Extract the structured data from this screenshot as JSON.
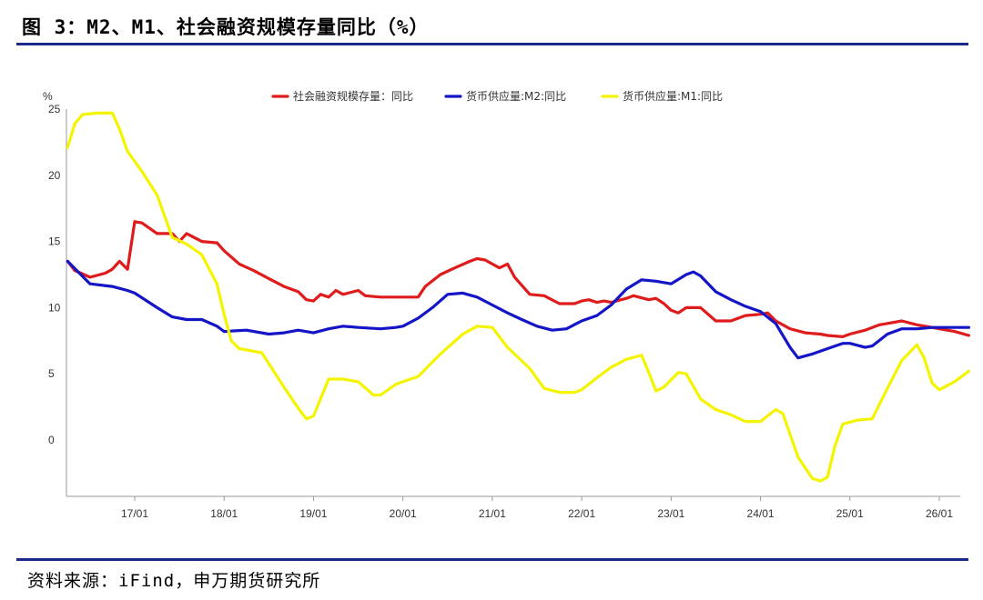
{
  "figure": {
    "title": "图 3：M2、M1、社会融资规模存量同比（%）",
    "source": "资料来源：iFind，申万期货研究所",
    "rule_color": "#1a2a8c"
  },
  "chart_data": {
    "type": "line",
    "y_unit": "%",
    "ylim": [
      -4,
      25
    ],
    "y_ticks": [
      "25",
      "20",
      "15",
      "10",
      "5",
      "0"
    ],
    "x_ticks": [
      "17/01",
      "18/01",
      "19/01",
      "20/01",
      "21/01",
      "22/01",
      "23/01",
      "24/01",
      "25/01",
      "26/01"
    ],
    "x_range": [
      2016.25,
      2026.33
    ],
    "grid": false,
    "legend_position": "top-center",
    "series": [
      {
        "name": "社会融资规模存量：同比",
        "color": "#e01b1b",
        "points": [
          [
            2016.25,
            13.5
          ],
          [
            2016.33,
            12.8
          ],
          [
            2016.5,
            12.3
          ],
          [
            2016.67,
            12.6
          ],
          [
            2016.75,
            12.9
          ],
          [
            2016.83,
            13.5
          ],
          [
            2016.92,
            12.9
          ],
          [
            2017.0,
            16.5
          ],
          [
            2017.08,
            16.4
          ],
          [
            2017.25,
            15.6
          ],
          [
            2017.42,
            15.6
          ],
          [
            2017.5,
            15.0
          ],
          [
            2017.58,
            15.6
          ],
          [
            2017.75,
            15.0
          ],
          [
            2017.92,
            14.9
          ],
          [
            2018.0,
            14.3
          ],
          [
            2018.17,
            13.3
          ],
          [
            2018.33,
            12.8
          ],
          [
            2018.5,
            12.2
          ],
          [
            2018.67,
            11.6
          ],
          [
            2018.83,
            11.2
          ],
          [
            2018.92,
            10.6
          ],
          [
            2019.0,
            10.5
          ],
          [
            2019.08,
            11.0
          ],
          [
            2019.17,
            10.8
          ],
          [
            2019.25,
            11.3
          ],
          [
            2019.33,
            11.0
          ],
          [
            2019.5,
            11.3
          ],
          [
            2019.58,
            10.9
          ],
          [
            2019.75,
            10.8
          ],
          [
            2020.0,
            10.8
          ],
          [
            2020.17,
            10.8
          ],
          [
            2020.25,
            11.6
          ],
          [
            2020.42,
            12.5
          ],
          [
            2020.58,
            13.0
          ],
          [
            2020.75,
            13.5
          ],
          [
            2020.83,
            13.7
          ],
          [
            2020.92,
            13.6
          ],
          [
            2021.0,
            13.3
          ],
          [
            2021.08,
            13.0
          ],
          [
            2021.17,
            13.3
          ],
          [
            2021.25,
            12.3
          ],
          [
            2021.42,
            11.0
          ],
          [
            2021.58,
            10.9
          ],
          [
            2021.75,
            10.3
          ],
          [
            2021.92,
            10.3
          ],
          [
            2022.0,
            10.5
          ],
          [
            2022.08,
            10.6
          ],
          [
            2022.17,
            10.4
          ],
          [
            2022.25,
            10.5
          ],
          [
            2022.33,
            10.4
          ],
          [
            2022.5,
            10.7
          ],
          [
            2022.58,
            10.9
          ],
          [
            2022.75,
            10.6
          ],
          [
            2022.83,
            10.7
          ],
          [
            2022.92,
            10.3
          ],
          [
            2023.0,
            9.8
          ],
          [
            2023.08,
            9.6
          ],
          [
            2023.17,
            10.0
          ],
          [
            2023.33,
            10.0
          ],
          [
            2023.5,
            9.0
          ],
          [
            2023.67,
            9.0
          ],
          [
            2023.83,
            9.4
          ],
          [
            2024.0,
            9.5
          ],
          [
            2024.08,
            9.6
          ],
          [
            2024.17,
            9.0
          ],
          [
            2024.33,
            8.4
          ],
          [
            2024.5,
            8.1
          ],
          [
            2024.67,
            8.0
          ],
          [
            2024.75,
            7.9
          ],
          [
            2024.92,
            7.8
          ],
          [
            2025.0,
            8.0
          ],
          [
            2025.17,
            8.3
          ],
          [
            2025.33,
            8.7
          ],
          [
            2025.5,
            8.9
          ],
          [
            2025.58,
            9.0
          ],
          [
            2025.75,
            8.7
          ],
          [
            2025.92,
            8.5
          ],
          [
            2026.0,
            8.4
          ],
          [
            2026.17,
            8.2
          ],
          [
            2026.33,
            7.9
          ]
        ]
      },
      {
        "name": "货币供应量:M2:同比",
        "color": "#1515c8",
        "points": [
          [
            2016.25,
            13.5
          ],
          [
            2016.5,
            11.8
          ],
          [
            2016.75,
            11.6
          ],
          [
            2016.92,
            11.3
          ],
          [
            2017.0,
            11.1
          ],
          [
            2017.25,
            10.0
          ],
          [
            2017.42,
            9.3
          ],
          [
            2017.58,
            9.1
          ],
          [
            2017.75,
            9.1
          ],
          [
            2017.92,
            8.6
          ],
          [
            2018.0,
            8.2
          ],
          [
            2018.25,
            8.3
          ],
          [
            2018.5,
            8.0
          ],
          [
            2018.67,
            8.1
          ],
          [
            2018.83,
            8.3
          ],
          [
            2019.0,
            8.1
          ],
          [
            2019.17,
            8.4
          ],
          [
            2019.33,
            8.6
          ],
          [
            2019.5,
            8.5
          ],
          [
            2019.75,
            8.4
          ],
          [
            2019.92,
            8.5
          ],
          [
            2020.0,
            8.6
          ],
          [
            2020.17,
            9.2
          ],
          [
            2020.33,
            10.0
          ],
          [
            2020.5,
            11.0
          ],
          [
            2020.67,
            11.1
          ],
          [
            2020.83,
            10.8
          ],
          [
            2021.0,
            10.2
          ],
          [
            2021.17,
            9.6
          ],
          [
            2021.33,
            9.1
          ],
          [
            2021.5,
            8.6
          ],
          [
            2021.67,
            8.3
          ],
          [
            2021.83,
            8.4
          ],
          [
            2022.0,
            9.0
          ],
          [
            2022.17,
            9.4
          ],
          [
            2022.33,
            10.2
          ],
          [
            2022.5,
            11.4
          ],
          [
            2022.67,
            12.1
          ],
          [
            2022.83,
            12.0
          ],
          [
            2023.0,
            11.8
          ],
          [
            2023.17,
            12.5
          ],
          [
            2023.25,
            12.7
          ],
          [
            2023.33,
            12.4
          ],
          [
            2023.5,
            11.2
          ],
          [
            2023.67,
            10.6
          ],
          [
            2023.83,
            10.1
          ],
          [
            2024.0,
            9.7
          ],
          [
            2024.17,
            8.8
          ],
          [
            2024.33,
            7.0
          ],
          [
            2024.42,
            6.2
          ],
          [
            2024.58,
            6.5
          ],
          [
            2024.75,
            6.9
          ],
          [
            2024.92,
            7.3
          ],
          [
            2025.0,
            7.3
          ],
          [
            2025.17,
            7.0
          ],
          [
            2025.25,
            7.1
          ],
          [
            2025.42,
            8.0
          ],
          [
            2025.58,
            8.4
          ],
          [
            2025.75,
            8.4
          ],
          [
            2025.92,
            8.5
          ],
          [
            2026.0,
            8.5
          ],
          [
            2026.17,
            8.5
          ],
          [
            2026.33,
            8.5
          ]
        ]
      },
      {
        "name": "货币供应量:M1:同比",
        "color": "#f4f400",
        "points": [
          [
            2016.25,
            22.1
          ],
          [
            2016.33,
            23.9
          ],
          [
            2016.42,
            24.6
          ],
          [
            2016.58,
            24.7
          ],
          [
            2016.75,
            24.7
          ],
          [
            2016.83,
            23.5
          ],
          [
            2016.92,
            21.8
          ],
          [
            2017.08,
            20.3
          ],
          [
            2017.25,
            18.5
          ],
          [
            2017.42,
            15.3
          ],
          [
            2017.58,
            14.8
          ],
          [
            2017.75,
            14.0
          ],
          [
            2017.92,
            11.8
          ],
          [
            2018.0,
            9.5
          ],
          [
            2018.08,
            7.5
          ],
          [
            2018.17,
            6.9
          ],
          [
            2018.42,
            6.6
          ],
          [
            2018.67,
            4.0
          ],
          [
            2018.83,
            2.4
          ],
          [
            2018.92,
            1.6
          ],
          [
            2019.0,
            1.8
          ],
          [
            2019.17,
            4.6
          ],
          [
            2019.33,
            4.6
          ],
          [
            2019.5,
            4.4
          ],
          [
            2019.67,
            3.4
          ],
          [
            2019.75,
            3.4
          ],
          [
            2019.92,
            4.2
          ],
          [
            2020.0,
            4.4
          ],
          [
            2020.17,
            4.8
          ],
          [
            2020.42,
            6.5
          ],
          [
            2020.67,
            8.0
          ],
          [
            2020.83,
            8.6
          ],
          [
            2021.0,
            8.5
          ],
          [
            2021.17,
            7.0
          ],
          [
            2021.42,
            5.4
          ],
          [
            2021.58,
            3.9
          ],
          [
            2021.75,
            3.6
          ],
          [
            2021.92,
            3.6
          ],
          [
            2022.0,
            3.8
          ],
          [
            2022.17,
            4.7
          ],
          [
            2022.33,
            5.5
          ],
          [
            2022.5,
            6.1
          ],
          [
            2022.67,
            6.4
          ],
          [
            2022.75,
            5.1
          ],
          [
            2022.83,
            3.7
          ],
          [
            2022.92,
            4.0
          ],
          [
            2023.08,
            5.1
          ],
          [
            2023.17,
            5.0
          ],
          [
            2023.33,
            3.1
          ],
          [
            2023.5,
            2.3
          ],
          [
            2023.67,
            1.9
          ],
          [
            2023.83,
            1.4
          ],
          [
            2024.0,
            1.4
          ],
          [
            2024.17,
            2.3
          ],
          [
            2024.25,
            2.0
          ],
          [
            2024.42,
            -1.3
          ],
          [
            2024.58,
            -2.9
          ],
          [
            2024.67,
            -3.1
          ],
          [
            2024.75,
            -2.8
          ],
          [
            2024.83,
            -0.5
          ],
          [
            2024.92,
            1.2
          ],
          [
            2025.08,
            1.5
          ],
          [
            2025.25,
            1.6
          ],
          [
            2025.42,
            3.9
          ],
          [
            2025.58,
            6.0
          ],
          [
            2025.75,
            7.2
          ],
          [
            2025.83,
            6.2
          ],
          [
            2025.92,
            4.3
          ],
          [
            2026.0,
            3.8
          ],
          [
            2026.17,
            4.4
          ],
          [
            2026.33,
            5.2
          ]
        ]
      }
    ]
  }
}
